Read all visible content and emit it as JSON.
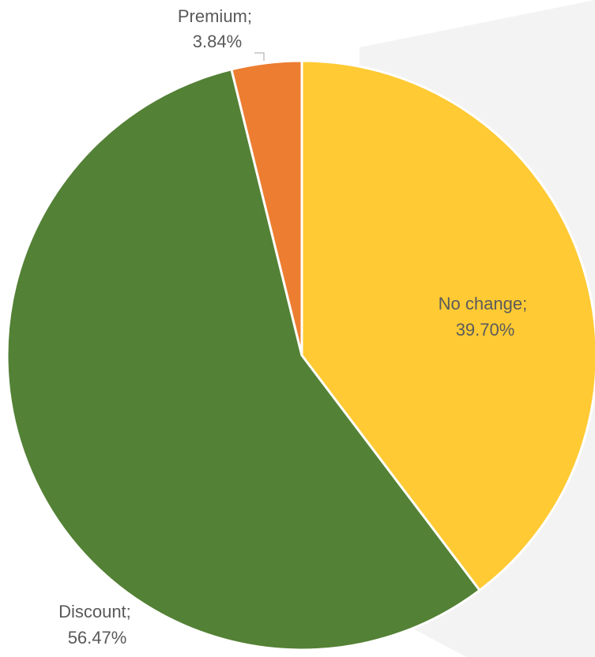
{
  "chart_data": {
    "type": "pie",
    "title": "",
    "categories": [
      "No change",
      "Discount",
      "Premium"
    ],
    "values": [
      39.7,
      56.47,
      3.84
    ],
    "unit": "%",
    "colors": [
      "#ffca33",
      "#538135",
      "#ed7d31"
    ],
    "start_angle_deg": 0,
    "direction": "clockwise",
    "legend": "none",
    "data_labels": [
      {
        "line1": "No change;",
        "line2": "39.70%"
      },
      {
        "line1": "Discount;",
        "line2": "56.47%"
      },
      {
        "line1": "Premium;",
        "line2": "3.84%"
      }
    ]
  }
}
